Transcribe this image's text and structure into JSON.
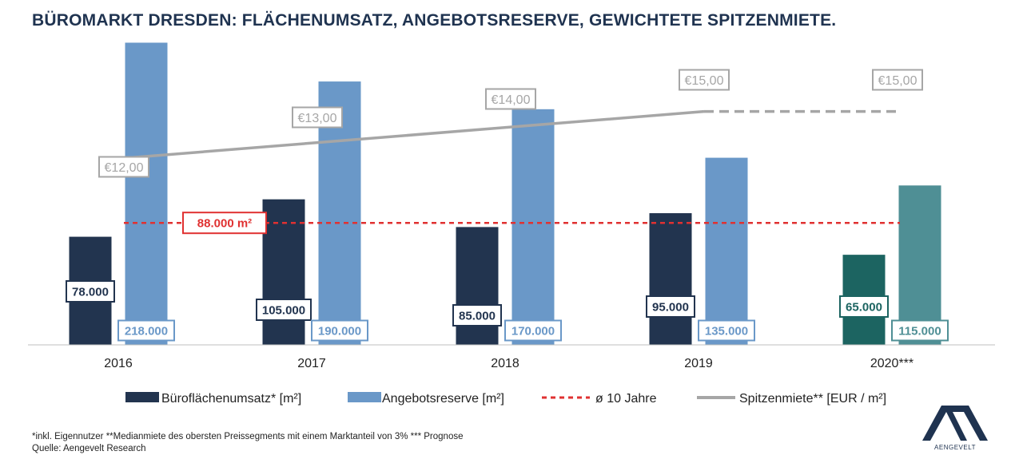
{
  "chart_data": {
    "type": "bar",
    "title": "BÜROMARKT DRESDEN: FLÄCHENUMSATZ, ANGEBOTSRESERVE, GEWICHTETE SPITZENMIETE.",
    "categories": [
      "2016",
      "2017",
      "2018",
      "2019",
      "2020***"
    ],
    "ylim": [
      0,
      220000
    ],
    "grid": false,
    "legend_position": "bottom",
    "series": [
      {
        "name": "Büroflächenumsatz* [m²]",
        "values": [
          78000,
          105000,
          85000,
          95000,
          65000
        ],
        "labels": [
          "78.000",
          "105.000",
          "85.000",
          "95.000",
          "65.000"
        ],
        "color": "#22344f",
        "forecast_color": "#1c6461"
      },
      {
        "name": "Angebotsreserve [m²]",
        "values": [
          218000,
          190000,
          170000,
          135000,
          115000
        ],
        "labels": [
          "218.000",
          "190.000",
          "170.000",
          "135.000",
          "115.000"
        ],
        "color": "#6a98c8",
        "forecast_color": "#4f8f95"
      }
    ],
    "reference_line": {
      "name": "ø 10 Jahre",
      "value": 88000,
      "label": "88.000 m²",
      "color": "#e03131"
    },
    "line_series": {
      "name": "Spitzenmiete** [EUR / m²]",
      "values": [
        12,
        13,
        14,
        15,
        15
      ],
      "labels": [
        "€12,00",
        "€13,00",
        "€14,00",
        "€15,00",
        "€15,00"
      ],
      "rent_axis_range": [
        0,
        19.6
      ],
      "color": "#a6a6a6"
    }
  },
  "footnote": "*inkl. Eigennutzer **Medianmiete des obersten Preissegments mit einem Marktanteil von 3% *** Prognose",
  "source": "Quelle: Aengevelt Research",
  "logo_text": "AENGEVELT"
}
